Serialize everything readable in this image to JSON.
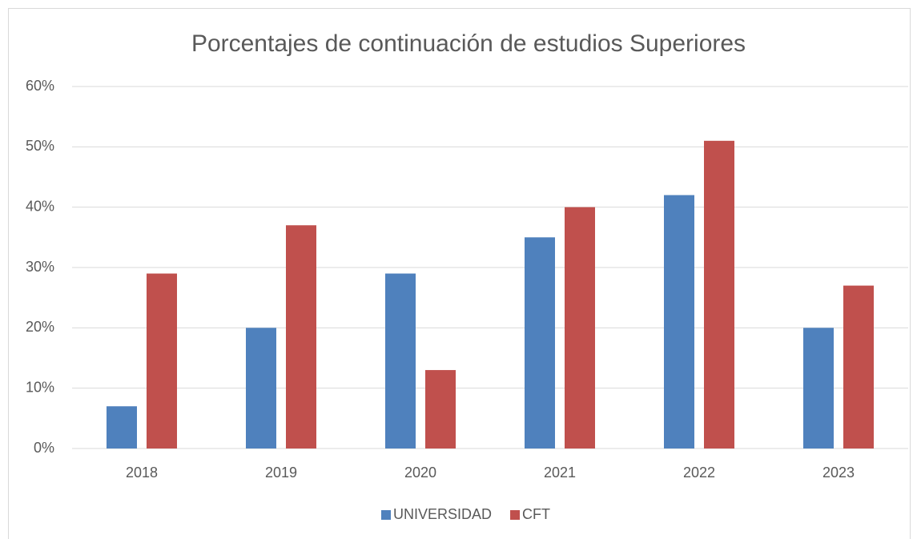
{
  "chart_data": {
    "type": "bar",
    "title": "Porcentajes de continuación de estudios Superiores",
    "categories": [
      "2018",
      "2019",
      "2020",
      "2021",
      "2022",
      "2023"
    ],
    "series": [
      {
        "name": "UNIVERSIDAD",
        "color": "#4f81bd",
        "values": [
          7,
          20,
          29,
          35,
          42,
          20
        ]
      },
      {
        "name": "CFT",
        "color": "#c0504d",
        "values": [
          29,
          37,
          13,
          40,
          51,
          27
        ]
      }
    ],
    "ylim": [
      0,
      60
    ],
    "yticks": [
      {
        "value": 0,
        "label": "0%"
      },
      {
        "value": 10,
        "label": "10%"
      },
      {
        "value": 20,
        "label": "20%"
      },
      {
        "value": 30,
        "label": "30%"
      },
      {
        "value": 40,
        "label": "40%"
      },
      {
        "value": 50,
        "label": "50%"
      },
      {
        "value": 60,
        "label": "60%"
      }
    ],
    "grid": true,
    "legend": "bottom"
  }
}
